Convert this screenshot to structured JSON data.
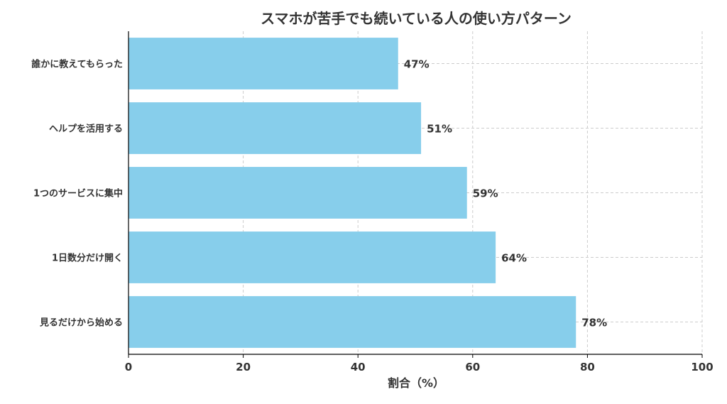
{
  "chart_data": {
    "type": "bar",
    "orientation": "horizontal",
    "title": "スマホが苦手でも続いている人の使い方パターン",
    "categories": [
      "誰かに教えてもらった",
      "ヘルプを活用する",
      "1つのサービスに集中",
      "1日数分だけ開く",
      "見るだけから始める"
    ],
    "values": [
      47,
      51,
      59,
      64,
      78
    ],
    "data_labels": [
      "47%",
      "51%",
      "59%",
      "64%",
      "78%"
    ],
    "xlabel": "割合（%）",
    "ylabel": "",
    "xlim": [
      0,
      100
    ],
    "xticks": [
      0,
      20,
      40,
      60,
      80,
      100
    ],
    "xtick_labels": [
      "0",
      "20",
      "40",
      "60",
      "80",
      "100"
    ],
    "grid": true,
    "colors": {
      "bar": "#87ceeb",
      "grid": "#cccccc",
      "axis": "#000000",
      "text": "#333333"
    }
  }
}
